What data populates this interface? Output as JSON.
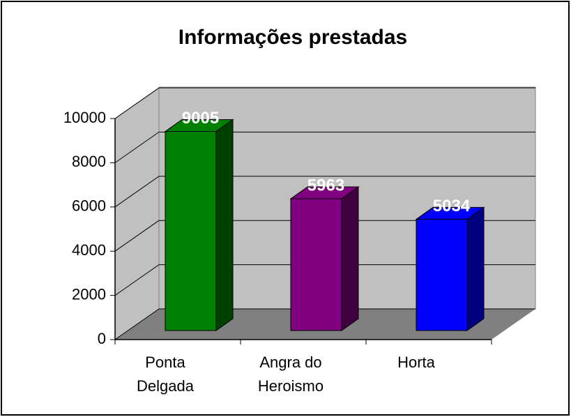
{
  "chart_data": {
    "type": "bar3d",
    "title": "Informações prestadas",
    "categories": [
      "Ponta Delgada",
      "Angra do Heroismo",
      "Horta"
    ],
    "values": [
      9005,
      5963,
      5034
    ],
    "colors": [
      "#008000",
      "#800080",
      "#0000ff"
    ],
    "ylim": [
      0,
      10000
    ],
    "yticks": [
      0,
      2000,
      4000,
      6000,
      8000,
      10000
    ],
    "grid": true
  }
}
